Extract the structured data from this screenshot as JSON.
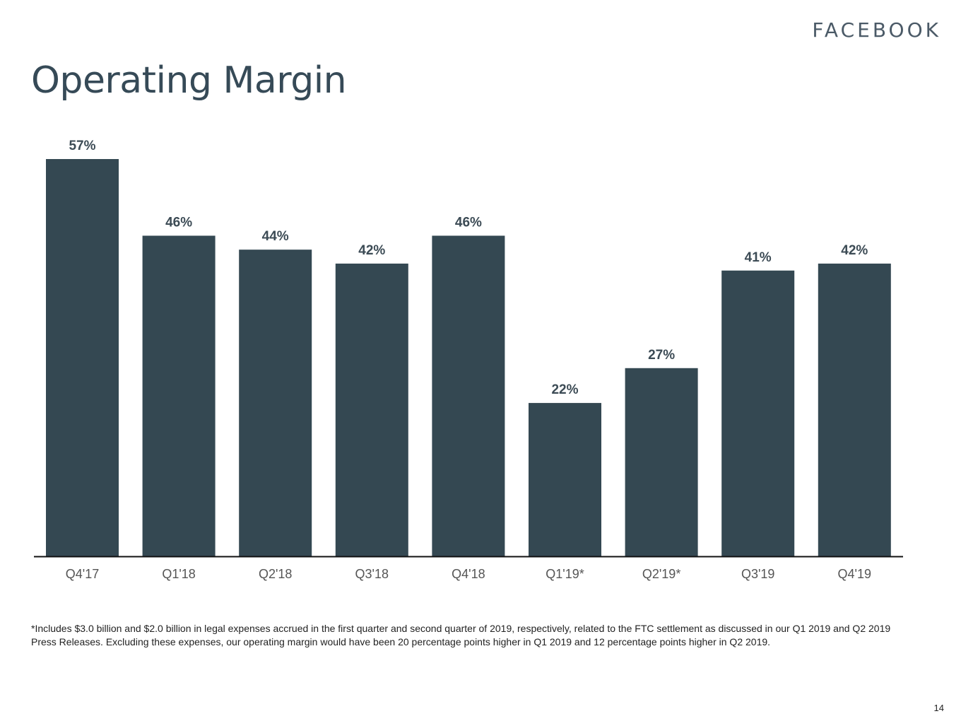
{
  "brand": "FACEBOOK",
  "page": {
    "title": "Operating Margin",
    "footnote": "*Includes $3.0 billion and $2.0 billion in legal expenses accrued in the first quarter and second quarter of 2019, respectively, related to the FTC settlement as discussed in our Q1 2019 and Q2 2019 Press Releases. Excluding these expenses, our operating margin would have been 20 percentage points higher in Q1 2019 and 12 percentage points higher in Q2 2019.",
    "page_number": "14"
  },
  "colors": {
    "bar": "#344852",
    "label": "#3c4b55",
    "axis": "#111111",
    "tick": "#555555"
  },
  "chart_data": {
    "type": "bar",
    "title": "Operating Margin",
    "categories": [
      "Q4'17",
      "Q1'18",
      "Q2'18",
      "Q3'18",
      "Q4'18",
      "Q1'19*",
      "Q2'19*",
      "Q3'19",
      "Q4'19"
    ],
    "values": [
      57,
      46,
      44,
      42,
      46,
      22,
      27,
      41,
      42
    ],
    "data_labels": [
      "57%",
      "46%",
      "44%",
      "42%",
      "46%",
      "22%",
      "27%",
      "41%",
      "42%"
    ],
    "unit": "%",
    "ylim": [
      0,
      57
    ],
    "grid": false,
    "legend": "none"
  }
}
